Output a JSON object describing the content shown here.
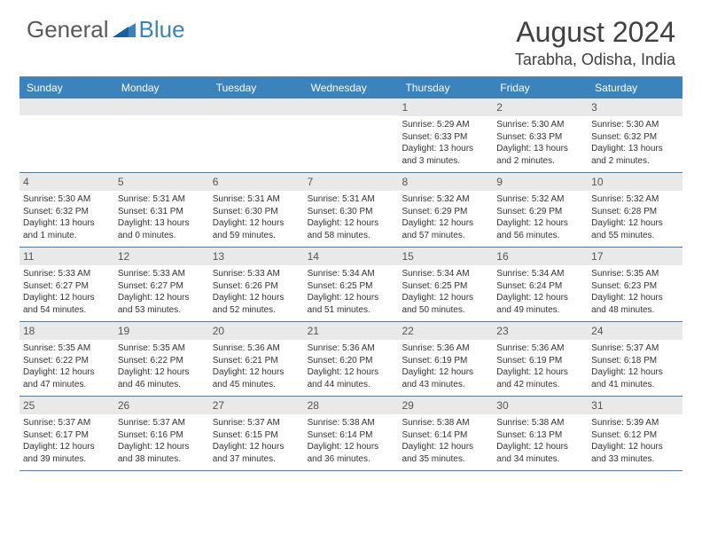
{
  "logo": {
    "general": "General",
    "blue": "Blue"
  },
  "title": "August 2024",
  "location": "Tarabha, Odisha, India",
  "colors": {
    "header_bg": "#3b83bd",
    "header_fg": "#ffffff",
    "daynum_bg": "#e9e9e9",
    "daynum_fg": "#555555",
    "text": "#333333",
    "body_bg": "#ffffff",
    "logo_gray": "#5a5a5a",
    "logo_blue": "#3b83bd",
    "rule": "#3b83bd"
  },
  "typography": {
    "title_fontsize": 32,
    "location_fontsize": 18,
    "dayhead_fontsize": 12,
    "daynum_fontsize": 12,
    "info_fontsize": 10,
    "logo_fontsize": 26
  },
  "day_headers": [
    "Sunday",
    "Monday",
    "Tuesday",
    "Wednesday",
    "Thursday",
    "Friday",
    "Saturday"
  ],
  "weeks": [
    [
      {
        "empty": true
      },
      {
        "empty": true
      },
      {
        "empty": true
      },
      {
        "empty": true
      },
      {
        "day": "1",
        "sunrise": "Sunrise: 5:29 AM",
        "sunset": "Sunset: 6:33 PM",
        "daylight": "Daylight: 13 hours and 3 minutes."
      },
      {
        "day": "2",
        "sunrise": "Sunrise: 5:30 AM",
        "sunset": "Sunset: 6:33 PM",
        "daylight": "Daylight: 13 hours and 2 minutes."
      },
      {
        "day": "3",
        "sunrise": "Sunrise: 5:30 AM",
        "sunset": "Sunset: 6:32 PM",
        "daylight": "Daylight: 13 hours and 2 minutes."
      }
    ],
    [
      {
        "day": "4",
        "sunrise": "Sunrise: 5:30 AM",
        "sunset": "Sunset: 6:32 PM",
        "daylight": "Daylight: 13 hours and 1 minute."
      },
      {
        "day": "5",
        "sunrise": "Sunrise: 5:31 AM",
        "sunset": "Sunset: 6:31 PM",
        "daylight": "Daylight: 13 hours and 0 minutes."
      },
      {
        "day": "6",
        "sunrise": "Sunrise: 5:31 AM",
        "sunset": "Sunset: 6:30 PM",
        "daylight": "Daylight: 12 hours and 59 minutes."
      },
      {
        "day": "7",
        "sunrise": "Sunrise: 5:31 AM",
        "sunset": "Sunset: 6:30 PM",
        "daylight": "Daylight: 12 hours and 58 minutes."
      },
      {
        "day": "8",
        "sunrise": "Sunrise: 5:32 AM",
        "sunset": "Sunset: 6:29 PM",
        "daylight": "Daylight: 12 hours and 57 minutes."
      },
      {
        "day": "9",
        "sunrise": "Sunrise: 5:32 AM",
        "sunset": "Sunset: 6:29 PM",
        "daylight": "Daylight: 12 hours and 56 minutes."
      },
      {
        "day": "10",
        "sunrise": "Sunrise: 5:32 AM",
        "sunset": "Sunset: 6:28 PM",
        "daylight": "Daylight: 12 hours and 55 minutes."
      }
    ],
    [
      {
        "day": "11",
        "sunrise": "Sunrise: 5:33 AM",
        "sunset": "Sunset: 6:27 PM",
        "daylight": "Daylight: 12 hours and 54 minutes."
      },
      {
        "day": "12",
        "sunrise": "Sunrise: 5:33 AM",
        "sunset": "Sunset: 6:27 PM",
        "daylight": "Daylight: 12 hours and 53 minutes."
      },
      {
        "day": "13",
        "sunrise": "Sunrise: 5:33 AM",
        "sunset": "Sunset: 6:26 PM",
        "daylight": "Daylight: 12 hours and 52 minutes."
      },
      {
        "day": "14",
        "sunrise": "Sunrise: 5:34 AM",
        "sunset": "Sunset: 6:25 PM",
        "daylight": "Daylight: 12 hours and 51 minutes."
      },
      {
        "day": "15",
        "sunrise": "Sunrise: 5:34 AM",
        "sunset": "Sunset: 6:25 PM",
        "daylight": "Daylight: 12 hours and 50 minutes."
      },
      {
        "day": "16",
        "sunrise": "Sunrise: 5:34 AM",
        "sunset": "Sunset: 6:24 PM",
        "daylight": "Daylight: 12 hours and 49 minutes."
      },
      {
        "day": "17",
        "sunrise": "Sunrise: 5:35 AM",
        "sunset": "Sunset: 6:23 PM",
        "daylight": "Daylight: 12 hours and 48 minutes."
      }
    ],
    [
      {
        "day": "18",
        "sunrise": "Sunrise: 5:35 AM",
        "sunset": "Sunset: 6:22 PM",
        "daylight": "Daylight: 12 hours and 47 minutes."
      },
      {
        "day": "19",
        "sunrise": "Sunrise: 5:35 AM",
        "sunset": "Sunset: 6:22 PM",
        "daylight": "Daylight: 12 hours and 46 minutes."
      },
      {
        "day": "20",
        "sunrise": "Sunrise: 5:36 AM",
        "sunset": "Sunset: 6:21 PM",
        "daylight": "Daylight: 12 hours and 45 minutes."
      },
      {
        "day": "21",
        "sunrise": "Sunrise: 5:36 AM",
        "sunset": "Sunset: 6:20 PM",
        "daylight": "Daylight: 12 hours and 44 minutes."
      },
      {
        "day": "22",
        "sunrise": "Sunrise: 5:36 AM",
        "sunset": "Sunset: 6:19 PM",
        "daylight": "Daylight: 12 hours and 43 minutes."
      },
      {
        "day": "23",
        "sunrise": "Sunrise: 5:36 AM",
        "sunset": "Sunset: 6:19 PM",
        "daylight": "Daylight: 12 hours and 42 minutes."
      },
      {
        "day": "24",
        "sunrise": "Sunrise: 5:37 AM",
        "sunset": "Sunset: 6:18 PM",
        "daylight": "Daylight: 12 hours and 41 minutes."
      }
    ],
    [
      {
        "day": "25",
        "sunrise": "Sunrise: 5:37 AM",
        "sunset": "Sunset: 6:17 PM",
        "daylight": "Daylight: 12 hours and 39 minutes."
      },
      {
        "day": "26",
        "sunrise": "Sunrise: 5:37 AM",
        "sunset": "Sunset: 6:16 PM",
        "daylight": "Daylight: 12 hours and 38 minutes."
      },
      {
        "day": "27",
        "sunrise": "Sunrise: 5:37 AM",
        "sunset": "Sunset: 6:15 PM",
        "daylight": "Daylight: 12 hours and 37 minutes."
      },
      {
        "day": "28",
        "sunrise": "Sunrise: 5:38 AM",
        "sunset": "Sunset: 6:14 PM",
        "daylight": "Daylight: 12 hours and 36 minutes."
      },
      {
        "day": "29",
        "sunrise": "Sunrise: 5:38 AM",
        "sunset": "Sunset: 6:14 PM",
        "daylight": "Daylight: 12 hours and 35 minutes."
      },
      {
        "day": "30",
        "sunrise": "Sunrise: 5:38 AM",
        "sunset": "Sunset: 6:13 PM",
        "daylight": "Daylight: 12 hours and 34 minutes."
      },
      {
        "day": "31",
        "sunrise": "Sunrise: 5:39 AM",
        "sunset": "Sunset: 6:12 PM",
        "daylight": "Daylight: 12 hours and 33 minutes."
      }
    ]
  ]
}
